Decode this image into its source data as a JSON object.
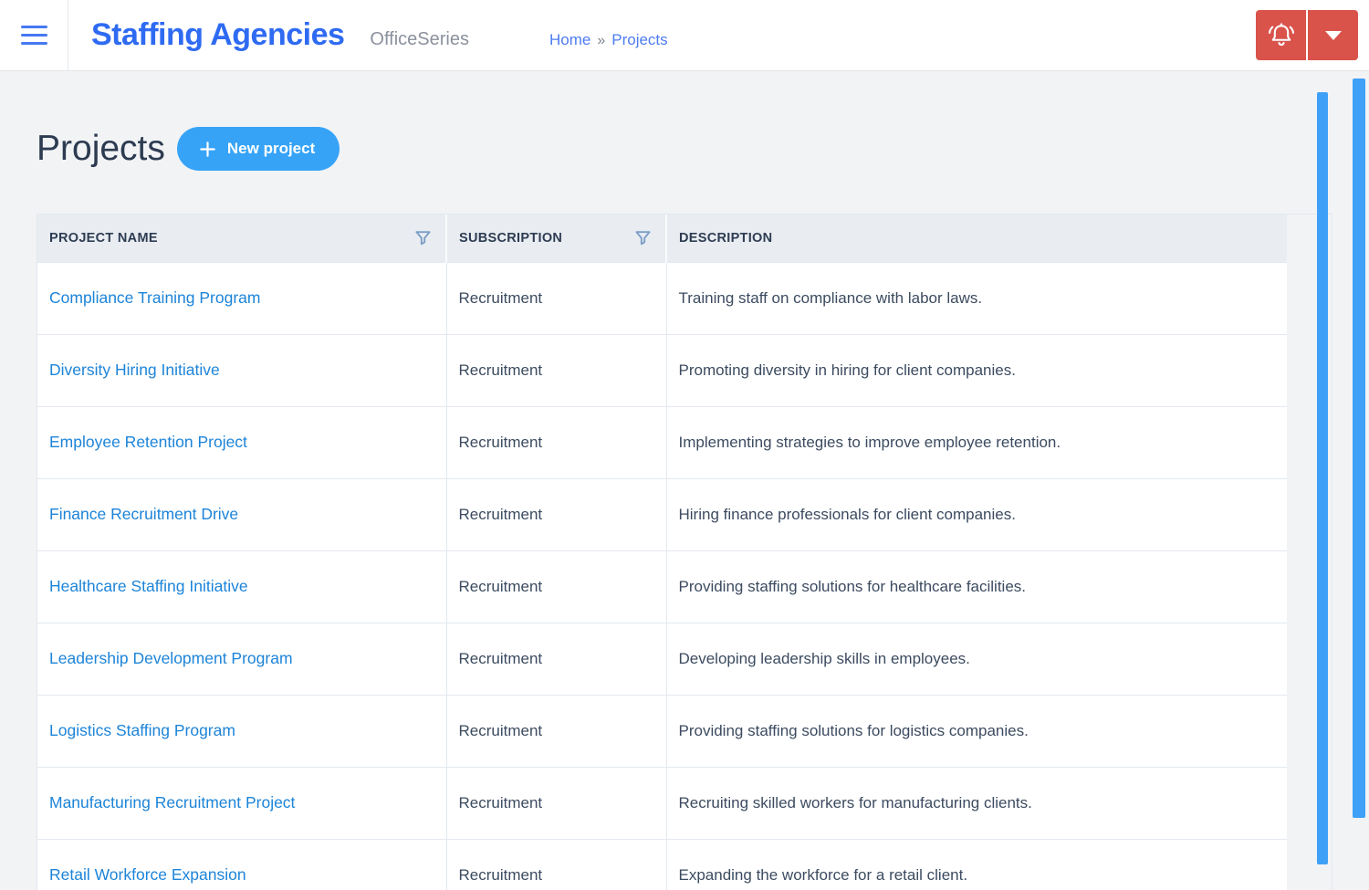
{
  "colors": {
    "brand_blue": "#2f6bf2",
    "breadcrumb_blue": "#4d7cf0",
    "link_blue": "#1d84d8",
    "button_blue": "#36a3f7",
    "danger_red": "#d9534b",
    "scrollbar_blue": "#3ea1f7",
    "header_text": "#2e3c52",
    "body_text": "#3c4b60",
    "table_header_bg": "#e9edf2",
    "page_bg": "#f2f3f5"
  },
  "header": {
    "brand": "Staffing Agencies",
    "product": "OfficeSeries",
    "breadcrumb": {
      "home": "Home",
      "separator": "»",
      "current": "Projects"
    }
  },
  "page": {
    "title": "Projects",
    "new_project_label": "New project"
  },
  "table": {
    "columns": [
      {
        "label": "PROJECT NAME",
        "filterable": true
      },
      {
        "label": "SUBSCRIPTION",
        "filterable": true
      },
      {
        "label": "DESCRIPTION",
        "filterable": false
      }
    ],
    "rows": [
      {
        "name": "Compliance Training Program",
        "subscription": "Recruitment",
        "description": "Training staff on compliance with labor laws."
      },
      {
        "name": "Diversity Hiring Initiative",
        "subscription": "Recruitment",
        "description": "Promoting diversity in hiring for client companies."
      },
      {
        "name": "Employee Retention Project",
        "subscription": "Recruitment",
        "description": "Implementing strategies to improve employee retention."
      },
      {
        "name": "Finance Recruitment Drive",
        "subscription": "Recruitment",
        "description": "Hiring finance professionals for client companies."
      },
      {
        "name": "Healthcare Staffing Initiative",
        "subscription": "Recruitment",
        "description": "Providing staffing solutions for healthcare facilities."
      },
      {
        "name": "Leadership Development Program",
        "subscription": "Recruitment",
        "description": "Developing leadership skills in employees."
      },
      {
        "name": "Logistics Staffing Program",
        "subscription": "Recruitment",
        "description": "Providing staffing solutions for logistics companies."
      },
      {
        "name": "Manufacturing Recruitment Project",
        "subscription": "Recruitment",
        "description": "Recruiting skilled workers for manufacturing clients."
      },
      {
        "name": "Retail Workforce Expansion",
        "subscription": "Recruitment",
        "description": "Expanding the workforce for a retail client."
      }
    ]
  }
}
